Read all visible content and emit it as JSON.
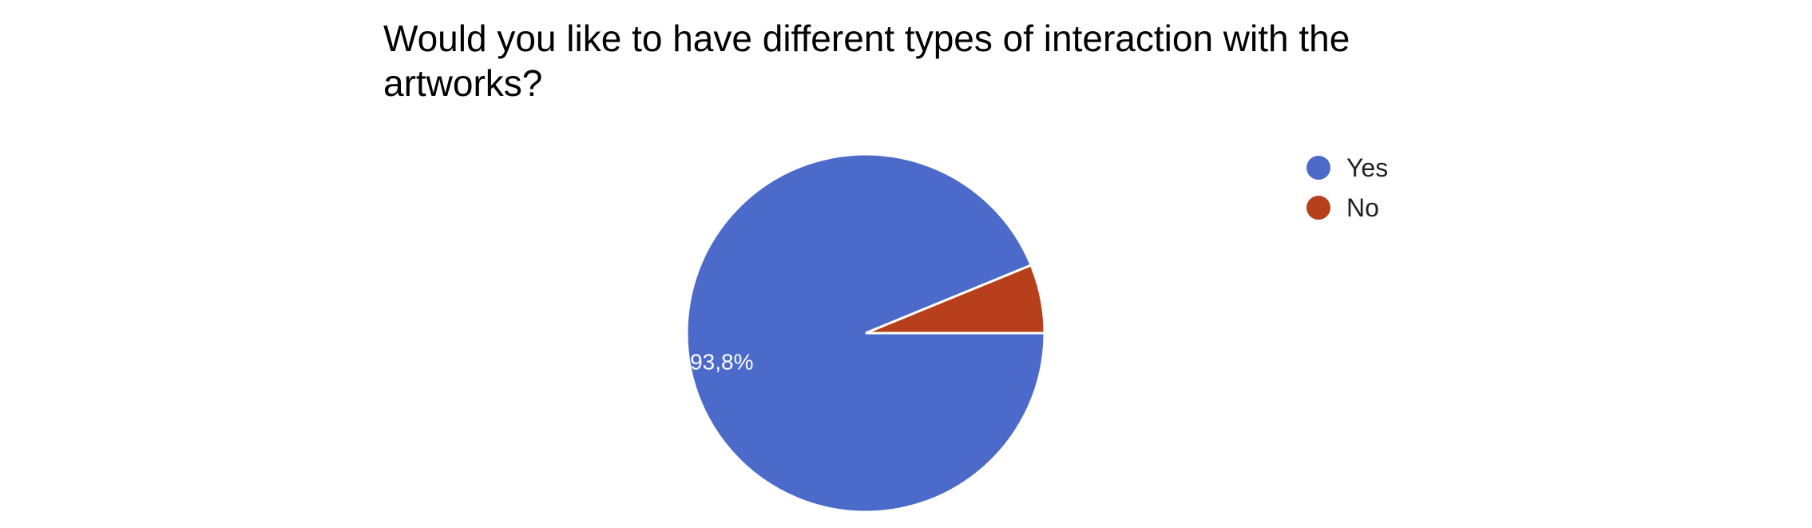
{
  "chart_data": {
    "type": "pie",
    "title": "Would you like to have different types of interaction with the artworks?",
    "slices": [
      {
        "label": "Yes",
        "value": 93.8,
        "display_label": "93,8%",
        "color": "#4b6ac9"
      },
      {
        "label": "No",
        "value": 6.2,
        "display_label": "",
        "color": "#b73f1b"
      }
    ],
    "legend_position": "right",
    "slice_label_color": "#ffffff"
  }
}
